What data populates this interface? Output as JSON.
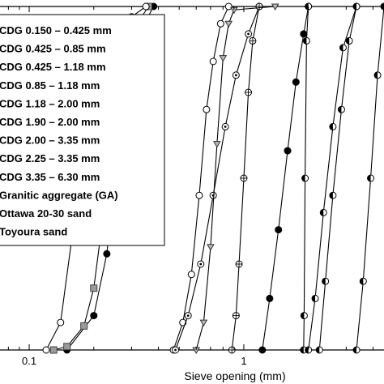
{
  "chart_data": {
    "type": "line",
    "title": "",
    "xlabel": "Sieve opening (mm)",
    "ylabel": "",
    "x_scale": "log",
    "xlim": [
      0.07,
      4.5
    ],
    "ylim": [
      0,
      100
    ],
    "x_tick_labels": [
      "0.1",
      "1"
    ],
    "grid": false,
    "legend_position": "top-left",
    "series": [
      {
        "name": "CDG 0.150 – 0.425 mm",
        "marker": "filled-circle",
        "x": [
          0.15,
          0.2,
          0.23,
          0.25,
          0.28,
          0.33,
          0.38
        ],
        "y": [
          0,
          10,
          28,
          50,
          78,
          93,
          100
        ]
      },
      {
        "name": "CDG 0.425 – 0.85 mm",
        "marker": "open-circle",
        "x": [
          0.47,
          0.52,
          0.57,
          0.62,
          0.67,
          0.72,
          0.78,
          0.85
        ],
        "y": [
          0,
          8,
          22,
          45,
          70,
          84,
          95,
          100
        ]
      },
      {
        "name": "CDG 0.425 – 1.18 mm",
        "marker": "dotted-circle",
        "x": [
          0.48,
          0.55,
          0.63,
          0.72,
          0.82,
          0.92,
          1.05,
          1.18
        ],
        "y": [
          0,
          10,
          25,
          45,
          65,
          80,
          92,
          100
        ]
      },
      {
        "name": "CDG 0.85 – 1.18 mm",
        "marker": "crossed-circle",
        "x": [
          0.88,
          0.92,
          0.95,
          1.0,
          1.05,
          1.1,
          1.18
        ],
        "y": [
          0,
          10,
          25,
          50,
          75,
          90,
          100
        ]
      },
      {
        "name": "CDG 1.18 – 2.00 mm",
        "marker": "filled-circle",
        "x": [
          1.22,
          1.32,
          1.45,
          1.6,
          1.75,
          1.9,
          2.0
        ],
        "y": [
          0,
          15,
          35,
          58,
          78,
          92,
          100
        ]
      },
      {
        "name": "CDG 1.90 – 2.00 mm",
        "marker": "half-circle",
        "x": [
          1.9,
          1.91,
          1.93,
          1.96,
          2.0
        ],
        "y": [
          0,
          10,
          50,
          90,
          100
        ]
      },
      {
        "name": "CDG 2.00 – 3.35 mm",
        "marker": "half-circle",
        "x": [
          2.0,
          2.15,
          2.35,
          2.6,
          2.9,
          3.35
        ],
        "y": [
          0,
          15,
          40,
          65,
          88,
          100
        ]
      },
      {
        "name": "CDG 2.25 – 3.35 mm",
        "marker": "half-circle",
        "x": [
          2.25,
          2.4,
          2.6,
          2.85,
          3.1,
          3.35
        ],
        "y": [
          0,
          20,
          45,
          70,
          90,
          100
        ]
      },
      {
        "name": "CDG 3.35 – 6.30 mm",
        "marker": "half-circle",
        "x": [
          3.35,
          3.6,
          3.9,
          4.2,
          4.5
        ],
        "y": [
          0,
          20,
          50,
          80,
          100
        ]
      },
      {
        "name": "Granitic aggregate (GA)",
        "marker": "gray-square",
        "x": [
          0.13,
          0.15,
          0.18,
          0.2,
          0.22,
          0.24,
          0.27,
          0.31,
          0.36
        ],
        "y": [
          0,
          1,
          7,
          18,
          38,
          60,
          80,
          94,
          100
        ]
      },
      {
        "name": "Ottawa 20-30 sand",
        "marker": "triangle-down",
        "x": [
          0.6,
          0.65,
          0.7,
          0.75,
          0.8,
          0.85,
          0.9,
          1.4
        ],
        "y": [
          0,
          8,
          30,
          60,
          85,
          95,
          99,
          100
        ]
      },
      {
        "name": "Toyoura sand",
        "marker": "open-circle",
        "x": [
          0.12,
          0.14,
          0.16,
          0.2,
          0.25,
          0.3,
          0.35
        ],
        "y": [
          0,
          8,
          35,
          70,
          90,
          97,
          100
        ]
      }
    ]
  }
}
